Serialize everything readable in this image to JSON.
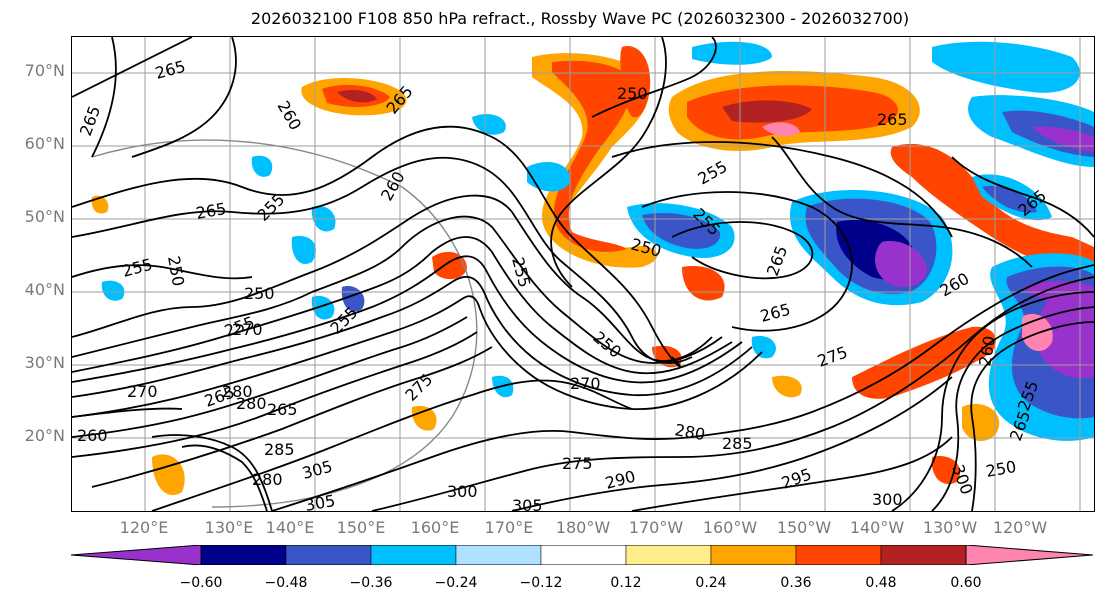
{
  "title": "2026032100 F108 850 hPa refract., Rossby Wave PC (2026032300 - 2026032700)",
  "lat_labels": [
    "70°N",
    "60°N",
    "50°N",
    "40°N",
    "30°N",
    "20°N"
  ],
  "lon_labels": [
    "120°E",
    "130°E",
    "140°E",
    "150°E",
    "160°E",
    "170°E",
    "180°W",
    "170°W",
    "160°W",
    "150°W",
    "140°W",
    "130°W",
    "120°W"
  ],
  "colorbar": {
    "ticks": [
      "−0.60",
      "−0.48",
      "−0.36",
      "−0.24",
      "−0.12",
      "0.12",
      "0.24",
      "0.36",
      "0.48",
      "0.60"
    ],
    "colors": [
      "#9932cc",
      "#00008b",
      "#3a55c8",
      "#00bfff",
      "#b0e0ff",
      "#ffffff",
      "#ffec8b",
      "#ffa500",
      "#ff4500",
      "#b22222",
      "#ff85b0"
    ]
  },
  "contour_labels": [
    "265",
    "265",
    "260",
    "265",
    "250",
    "265",
    "265",
    "255",
    "255",
    "260",
    "265",
    "250",
    "255",
    "250",
    "255",
    "250",
    "255",
    "255",
    "265",
    "265",
    "260",
    "250",
    "255",
    "265",
    "270",
    "275",
    "280",
    "285",
    "280",
    "285",
    "290",
    "295",
    "300",
    "305",
    "300",
    "305",
    "260",
    "265",
    "270",
    "275",
    "280",
    "275",
    "270",
    "300",
    "305",
    "250",
    "255",
    "260",
    "265",
    "280"
  ],
  "colors": {
    "contour": "#000000",
    "grid": "#9e9e9e",
    "axis_text": "#7a7a7a"
  }
}
